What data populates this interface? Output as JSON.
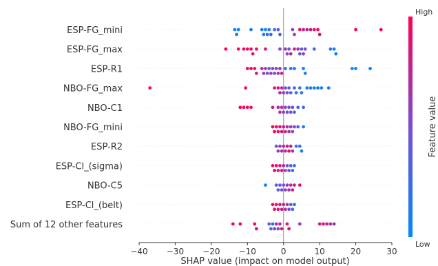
{
  "chart_data": {
    "type": "scatter",
    "subtype": "shap-beeswarm",
    "xlabel": "SHAP value (impact on model output)",
    "xlim": [
      -40,
      30
    ],
    "xticks": [
      -40,
      -30,
      -20,
      -10,
      0,
      10,
      20,
      30
    ],
    "grid": false,
    "legend": "colorbar-right",
    "colorbar": {
      "label": "Feature value",
      "high": "High",
      "low": "Low",
      "color_high": "#ff0051",
      "color_low": "#008bfb"
    },
    "features": [
      {
        "name": "ESP-FG_mini",
        "points": [
          {
            "x": -13.5,
            "v": 0.05
          },
          {
            "x": -13,
            "v": 0.05
          },
          {
            "x": -12.5,
            "v": 0.1
          },
          {
            "x": -9,
            "v": 0.1
          },
          {
            "x": -6,
            "v": 0.15
          },
          {
            "x": -5.5,
            "v": 0.15
          },
          {
            "x": -5,
            "v": 0.1
          },
          {
            "x": -4.5,
            "v": 0.2
          },
          {
            "x": -4,
            "v": 0.2
          },
          {
            "x": -3.5,
            "v": 0.25
          },
          {
            "x": -2.5,
            "v": 0.3
          },
          {
            "x": -1.5,
            "v": 0.3
          },
          {
            "x": -1,
            "v": 0.35
          },
          {
            "x": 2.5,
            "v": 0.55
          },
          {
            "x": 3,
            "v": 0.6
          },
          {
            "x": 4.5,
            "v": 0.9
          },
          {
            "x": 5.5,
            "v": 0.8
          },
          {
            "x": 6.5,
            "v": 0.75
          },
          {
            "x": 7.5,
            "v": 0.9
          },
          {
            "x": 8.5,
            "v": 0.9
          },
          {
            "x": 9.5,
            "v": 0.95
          },
          {
            "x": 10,
            "v": 0.95
          },
          {
            "x": 20,
            "v": 1.0
          },
          {
            "x": 27,
            "v": 1.0
          }
        ]
      },
      {
        "name": "ESP-FG_max",
        "points": [
          {
            "x": -16,
            "v": 1.0
          },
          {
            "x": -12.5,
            "v": 0.95
          },
          {
            "x": -11,
            "v": 0.95
          },
          {
            "x": -10,
            "v": 0.9
          },
          {
            "x": -9,
            "v": 0.95
          },
          {
            "x": -8.5,
            "v": 0.9
          },
          {
            "x": -7.5,
            "v": 0.9
          },
          {
            "x": -5,
            "v": 0.85
          },
          {
            "x": -1,
            "v": 0.5
          },
          {
            "x": 0.5,
            "v": 0.6
          },
          {
            "x": 1,
            "v": 0.55
          },
          {
            "x": 1.5,
            "v": 0.5
          },
          {
            "x": 2,
            "v": 0.75
          },
          {
            "x": 3,
            "v": 0.8
          },
          {
            "x": 4,
            "v": 0.7
          },
          {
            "x": 4.5,
            "v": 0.4
          },
          {
            "x": 5,
            "v": 0.35
          },
          {
            "x": 5.5,
            "v": 0.6
          },
          {
            "x": 6,
            "v": 0.45
          },
          {
            "x": 8.5,
            "v": 0.3
          },
          {
            "x": 13,
            "v": 0.1
          },
          {
            "x": 14,
            "v": 0.1
          },
          {
            "x": 14.5,
            "v": 0.05
          }
        ]
      },
      {
        "name": "ESP-R1",
        "points": [
          {
            "x": -10,
            "v": 0.95
          },
          {
            "x": -9,
            "v": 0.9
          },
          {
            "x": -8,
            "v": 0.85
          },
          {
            "x": -7.5,
            "v": 0.8
          },
          {
            "x": -6,
            "v": 0.7
          },
          {
            "x": -5.5,
            "v": 0.6
          },
          {
            "x": -5,
            "v": 0.55
          },
          {
            "x": -4.5,
            "v": 0.5
          },
          {
            "x": -4,
            "v": 0.5
          },
          {
            "x": -3.5,
            "v": 0.6
          },
          {
            "x": -3,
            "v": 0.55
          },
          {
            "x": -2.5,
            "v": 0.5
          },
          {
            "x": -2,
            "v": 0.55
          },
          {
            "x": -1.5,
            "v": 0.65
          },
          {
            "x": -1,
            "v": 0.7
          },
          {
            "x": -0.5,
            "v": 0.8
          },
          {
            "x": 0.5,
            "v": 0.35
          },
          {
            "x": 2,
            "v": 0.2
          },
          {
            "x": 3,
            "v": 0.15
          },
          {
            "x": 5.5,
            "v": 0.1
          },
          {
            "x": 6,
            "v": 0.1
          },
          {
            "x": 19,
            "v": 0.05
          },
          {
            "x": 20,
            "v": 0.05
          },
          {
            "x": 24,
            "v": 0.05
          }
        ]
      },
      {
        "name": "NBO-FG_max",
        "points": [
          {
            "x": -37,
            "v": 1.0
          },
          {
            "x": -10.5,
            "v": 0.95
          },
          {
            "x": -2.5,
            "v": 0.8
          },
          {
            "x": -1.5,
            "v": 0.85
          },
          {
            "x": -1,
            "v": 0.75
          },
          {
            "x": -0.5,
            "v": 0.7
          },
          {
            "x": 0,
            "v": 0.6
          },
          {
            "x": 0.5,
            "v": 0.5
          },
          {
            "x": 1,
            "v": 0.45
          },
          {
            "x": 1.5,
            "v": 0.4
          },
          {
            "x": 2,
            "v": 0.35
          },
          {
            "x": 3,
            "v": 0.3
          },
          {
            "x": 3.5,
            "v": 0.25
          },
          {
            "x": 4.5,
            "v": 0.2
          },
          {
            "x": 5,
            "v": 0.15
          },
          {
            "x": 6.5,
            "v": 0.15
          },
          {
            "x": 7.5,
            "v": 0.1
          },
          {
            "x": 8.5,
            "v": 0.1
          },
          {
            "x": 9.5,
            "v": 0.1
          },
          {
            "x": 10.5,
            "v": 0.1
          },
          {
            "x": 12.5,
            "v": 0.05
          }
        ]
      },
      {
        "name": "NBO-C1",
        "points": [
          {
            "x": -12,
            "v": 1.0
          },
          {
            "x": -11,
            "v": 0.95
          },
          {
            "x": -10,
            "v": 0.95
          },
          {
            "x": -9,
            "v": 0.9
          },
          {
            "x": -3,
            "v": 0.8
          },
          {
            "x": -1.5,
            "v": 0.75
          },
          {
            "x": -1,
            "v": 0.7
          },
          {
            "x": -0.5,
            "v": 0.7
          },
          {
            "x": 0,
            "v": 0.6
          },
          {
            "x": 0.5,
            "v": 0.55
          },
          {
            "x": 1,
            "v": 0.5
          },
          {
            "x": 1.5,
            "v": 0.5
          },
          {
            "x": 2,
            "v": 0.45
          },
          {
            "x": 2.5,
            "v": 0.4
          },
          {
            "x": 3,
            "v": 0.35
          },
          {
            "x": 4,
            "v": 0.3
          },
          {
            "x": 5.5,
            "v": 0.25
          }
        ]
      },
      {
        "name": "NBO-FG_mini",
        "points": [
          {
            "x": -3,
            "v": 0.95
          },
          {
            "x": -2.5,
            "v": 0.95
          },
          {
            "x": -2,
            "v": 0.9
          },
          {
            "x": -1.5,
            "v": 0.9
          },
          {
            "x": -1,
            "v": 0.85
          },
          {
            "x": -0.5,
            "v": 0.85
          },
          {
            "x": 0,
            "v": 0.8
          },
          {
            "x": 0.5,
            "v": 0.75
          },
          {
            "x": 1,
            "v": 0.7
          },
          {
            "x": 1.5,
            "v": 0.65
          },
          {
            "x": 2,
            "v": 0.6
          },
          {
            "x": 2.5,
            "v": 0.55
          },
          {
            "x": 3,
            "v": 0.5
          },
          {
            "x": 4,
            "v": 0.4
          },
          {
            "x": 5.5,
            "v": 0.1
          }
        ]
      },
      {
        "name": "ESP-R2",
        "points": [
          {
            "x": -2,
            "v": 0.5
          },
          {
            "x": -1.5,
            "v": 0.55
          },
          {
            "x": -1,
            "v": 0.6
          },
          {
            "x": -0.5,
            "v": 0.65
          },
          {
            "x": 0,
            "v": 0.7
          },
          {
            "x": 0.5,
            "v": 0.75
          },
          {
            "x": 1,
            "v": 0.8
          },
          {
            "x": 1.5,
            "v": 0.85
          },
          {
            "x": 2,
            "v": 0.8
          },
          {
            "x": 2.5,
            "v": 0.7
          },
          {
            "x": 3.5,
            "v": 0.2
          },
          {
            "x": 4.5,
            "v": 0.15
          },
          {
            "x": 5,
            "v": 0.1
          }
        ]
      },
      {
        "name": "ESP-Cl_(sigma)",
        "points": [
          {
            "x": -3,
            "v": 0.95
          },
          {
            "x": -2.5,
            "v": 0.9
          },
          {
            "x": -2,
            "v": 0.9
          },
          {
            "x": -1.5,
            "v": 0.85
          },
          {
            "x": -1,
            "v": 0.85
          },
          {
            "x": -0.5,
            "v": 0.8
          },
          {
            "x": 0,
            "v": 0.75
          },
          {
            "x": 0.5,
            "v": 0.6
          },
          {
            "x": 1,
            "v": 0.5
          },
          {
            "x": 1.5,
            "v": 0.4
          },
          {
            "x": 2,
            "v": 0.3
          },
          {
            "x": 2.5,
            "v": 0.2
          },
          {
            "x": 3,
            "v": 0.15
          }
        ]
      },
      {
        "name": "NBO-C5",
        "points": [
          {
            "x": -5,
            "v": 0.05
          },
          {
            "x": -2,
            "v": 0.3
          },
          {
            "x": -1.5,
            "v": 0.35
          },
          {
            "x": -1,
            "v": 0.4
          },
          {
            "x": -0.5,
            "v": 0.45
          },
          {
            "x": 0,
            "v": 0.5
          },
          {
            "x": 0.5,
            "v": 0.55
          },
          {
            "x": 1,
            "v": 0.6
          },
          {
            "x": 1.5,
            "v": 0.65
          },
          {
            "x": 2,
            "v": 0.7
          },
          {
            "x": 2.5,
            "v": 0.75
          },
          {
            "x": 3,
            "v": 0.8
          },
          {
            "x": 4.5,
            "v": 0.9
          }
        ]
      },
      {
        "name": "ESP-Cl_(belt)",
        "points": [
          {
            "x": -3,
            "v": 0.95
          },
          {
            "x": -2.5,
            "v": 0.9
          },
          {
            "x": -2,
            "v": 0.9
          },
          {
            "x": -1.5,
            "v": 0.85
          },
          {
            "x": -1,
            "v": 0.85
          },
          {
            "x": -0.5,
            "v": 0.8
          },
          {
            "x": 0,
            "v": 0.75
          },
          {
            "x": 0.5,
            "v": 0.7
          },
          {
            "x": 1,
            "v": 0.6
          },
          {
            "x": 1.5,
            "v": 0.5
          },
          {
            "x": 2,
            "v": 0.4
          },
          {
            "x": 2.5,
            "v": 0.3
          },
          {
            "x": 3,
            "v": 0.2
          }
        ]
      },
      {
        "name": "Sum of 12 other features",
        "points": [
          {
            "x": -14,
            "v": 1.0
          },
          {
            "x": -12,
            "v": 0.95
          },
          {
            "x": -8,
            "v": 0.9
          },
          {
            "x": -7.5,
            "v": 0.85
          },
          {
            "x": -4,
            "v": 0.3
          },
          {
            "x": -3.5,
            "v": 0.2
          },
          {
            "x": -3,
            "v": 0.25
          },
          {
            "x": -2.5,
            "v": 0.6
          },
          {
            "x": -2,
            "v": 0.65
          },
          {
            "x": -1.5,
            "v": 0.55
          },
          {
            "x": -1,
            "v": 0.7
          },
          {
            "x": -0.5,
            "v": 0.8
          },
          {
            "x": 1,
            "v": 0.85
          },
          {
            "x": 1.5,
            "v": 0.9
          },
          {
            "x": 4.5,
            "v": 0.6
          },
          {
            "x": 10,
            "v": 0.8
          },
          {
            "x": 11,
            "v": 0.85
          },
          {
            "x": 12,
            "v": 0.75
          },
          {
            "x": 13,
            "v": 0.7
          },
          {
            "x": 14,
            "v": 0.6
          }
        ]
      }
    ]
  }
}
